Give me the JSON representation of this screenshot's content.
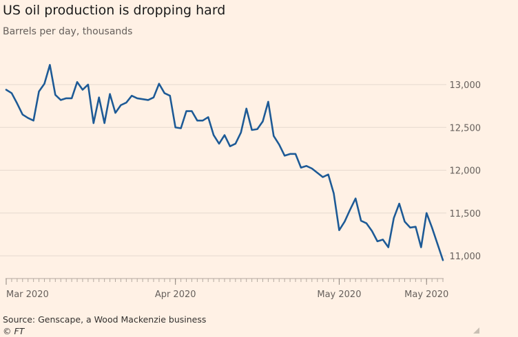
{
  "title": "US oil production is dropping hard",
  "subtitle": "Barrels per day, thousands",
  "source": "Source: Genscape, a Wood Mackenzie business",
  "credit": "© FT",
  "colors": {
    "background": "#fff1e5",
    "line": "#1d5a96",
    "grid": "#e6d9ce"
  },
  "chart_data": {
    "type": "line",
    "title": "US oil production is dropping hard",
    "ylabel": "Barrels per day, thousands",
    "ylim": [
      10800,
      13300
    ],
    "yticks": [
      11000,
      11500,
      12000,
      12500,
      13000
    ],
    "ytick_labels": [
      "11,000",
      "11,500",
      "12,000",
      "12,500",
      "13,000"
    ],
    "xtick_labels": [
      {
        "label": "Mar 2020",
        "index": 0
      },
      {
        "label": "Apr 2020",
        "index": 31
      },
      {
        "label": "May 2020",
        "index": 61
      },
      {
        "label": "May 2020",
        "index": 77
      }
    ],
    "grid": true,
    "y_axis_position": "right",
    "series": [
      {
        "values": [
          12940,
          12900,
          12780,
          12650,
          12610,
          12580,
          12920,
          13010,
          13230,
          12880,
          12820,
          12840,
          12840,
          13030,
          12940,
          13000,
          12550,
          12850,
          12550,
          12890,
          12670,
          12760,
          12790,
          12870,
          12840,
          12830,
          12820,
          12850,
          13010,
          12900,
          12870,
          12500,
          12490,
          12690,
          12690,
          12580,
          12580,
          12620,
          12410,
          12310,
          12410,
          12280,
          12310,
          12440,
          12720,
          12470,
          12480,
          12570,
          12800,
          12400,
          12300,
          12170,
          12190,
          12190,
          12030,
          12050,
          12020,
          11970,
          11920,
          11950,
          11730,
          11300,
          11400,
          11540,
          11670,
          11410,
          11380,
          11290,
          11170,
          11190,
          11100,
          11440,
          11610,
          11400,
          11330,
          11340,
          11100,
          11500,
          11330,
          11140,
          10950
        ]
      }
    ]
  }
}
